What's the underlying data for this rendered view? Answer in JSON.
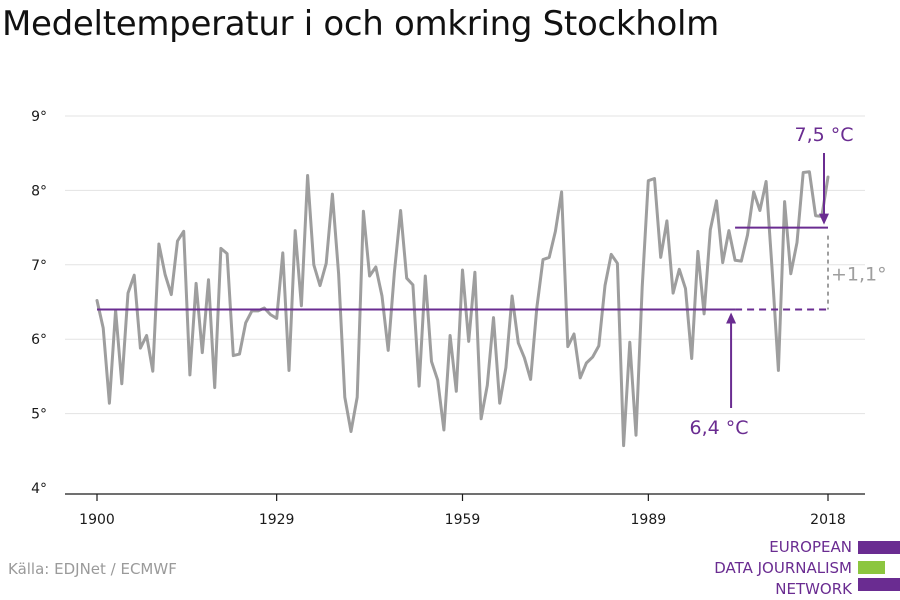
{
  "title": "Medeltemperatur i och omkring Stockholm",
  "source": "Källa: EDJNet / ECMWF",
  "logo": {
    "lines": [
      "EUROPEAN",
      "DATA JOURNALISM",
      "NETWORK"
    ],
    "colors": {
      "purple": "#6a2c91",
      "green": "#8cc63f"
    }
  },
  "colors": {
    "series": "#9e9e9e",
    "accent": "#6a2c91",
    "grid": "#e3e3e3",
    "annotation_gray": "#9e9e9e"
  },
  "chart_data": {
    "type": "line",
    "title": "Medeltemperatur i och omkring Stockholm",
    "xlabel": "",
    "ylabel": "",
    "xlim": [
      1900,
      2018
    ],
    "ylim": [
      4,
      9
    ],
    "grid": true,
    "x_ticks": [
      1900,
      1929,
      1959,
      1989,
      2018
    ],
    "x_tick_labels": [
      "1900",
      "1929",
      "1959",
      "1989",
      "2018"
    ],
    "y_ticks": [
      4,
      5,
      6,
      7,
      8,
      9
    ],
    "y_tick_labels": [
      "4°",
      "5°",
      "6°",
      "7°",
      "8°",
      "9°"
    ],
    "series": [
      {
        "x": [
          1900,
          1901,
          1902,
          1903,
          1904,
          1905,
          1906,
          1907,
          1908,
          1909,
          1910,
          1911,
          1912,
          1913,
          1914,
          1915,
          1916,
          1917,
          1918,
          1919,
          1920,
          1921,
          1922,
          1923,
          1924,
          1925,
          1926,
          1927,
          1928,
          1929,
          1930,
          1931,
          1932,
          1933,
          1934,
          1935,
          1936,
          1937,
          1938,
          1939,
          1940,
          1941,
          1942,
          1943,
          1944,
          1945,
          1946,
          1947,
          1948,
          1949,
          1950,
          1951,
          1952,
          1953,
          1954,
          1955,
          1956,
          1957,
          1958,
          1959,
          1960,
          1961,
          1962,
          1963,
          1964,
          1965,
          1966,
          1967,
          1968,
          1969,
          1970,
          1971,
          1972,
          1973,
          1974,
          1975,
          1976,
          1977,
          1978,
          1979,
          1980,
          1981,
          1982,
          1983,
          1984,
          1985,
          1986,
          1987,
          1988,
          1989,
          1990,
          1991,
          1992,
          1993,
          1994,
          1995,
          1996,
          1997,
          1998,
          1999,
          2000,
          2001,
          2002,
          2003,
          2004,
          2005,
          2006,
          2007,
          2008,
          2009,
          2010,
          2011,
          2012,
          2013,
          2014,
          2015,
          2016,
          2017,
          2018
        ],
        "values": [
          6.52,
          6.15,
          5.14,
          6.39,
          5.4,
          6.62,
          6.86,
          5.88,
          6.05,
          5.57,
          7.28,
          6.87,
          6.6,
          7.32,
          7.45,
          5.52,
          6.75,
          5.82,
          6.8,
          5.35,
          7.22,
          7.15,
          5.78,
          5.8,
          6.22,
          6.38,
          6.38,
          6.42,
          6.33,
          6.28,
          7.16,
          5.58,
          7.46,
          6.45,
          8.2,
          7.0,
          6.72,
          7.02,
          7.95,
          6.88,
          5.22,
          4.76,
          5.22,
          7.72,
          6.85,
          6.97,
          6.58,
          5.85,
          6.9,
          7.73,
          6.82,
          6.73,
          5.37,
          6.85,
          5.7,
          5.45,
          4.78,
          6.05,
          5.3,
          6.93,
          5.97,
          6.9,
          4.93,
          5.38,
          6.29,
          5.14,
          5.62,
          6.58,
          5.95,
          5.75,
          5.46,
          6.42,
          7.07,
          7.1,
          7.45,
          7.98,
          5.9,
          6.07,
          5.48,
          5.68,
          5.76,
          5.91,
          6.72,
          7.14,
          7.02,
          4.57,
          5.96,
          4.71,
          6.7,
          8.13,
          8.16,
          7.1,
          7.59,
          6.62,
          6.94,
          6.68,
          5.74,
          7.18,
          6.34,
          7.47,
          7.86,
          7.03,
          7.46,
          7.06,
          7.05,
          7.4,
          7.98,
          7.73,
          8.12,
          6.92,
          5.58,
          7.85,
          6.88,
          7.3,
          8.24,
          8.25,
          7.66,
          7.65,
          8.18
        ]
      }
    ],
    "reference_lines": [
      {
        "label": "6,4 °C",
        "value": 6.4,
        "x_start": 1900,
        "x_end": 2003,
        "dashed_until": 2018
      },
      {
        "label": "7,5 °C",
        "value": 7.5,
        "x_start": 2003,
        "x_end": 2018
      }
    ],
    "annotations": {
      "low_label": "6,4 °C",
      "high_label": "7,5 °C",
      "diff_label": "+1,1°"
    }
  }
}
